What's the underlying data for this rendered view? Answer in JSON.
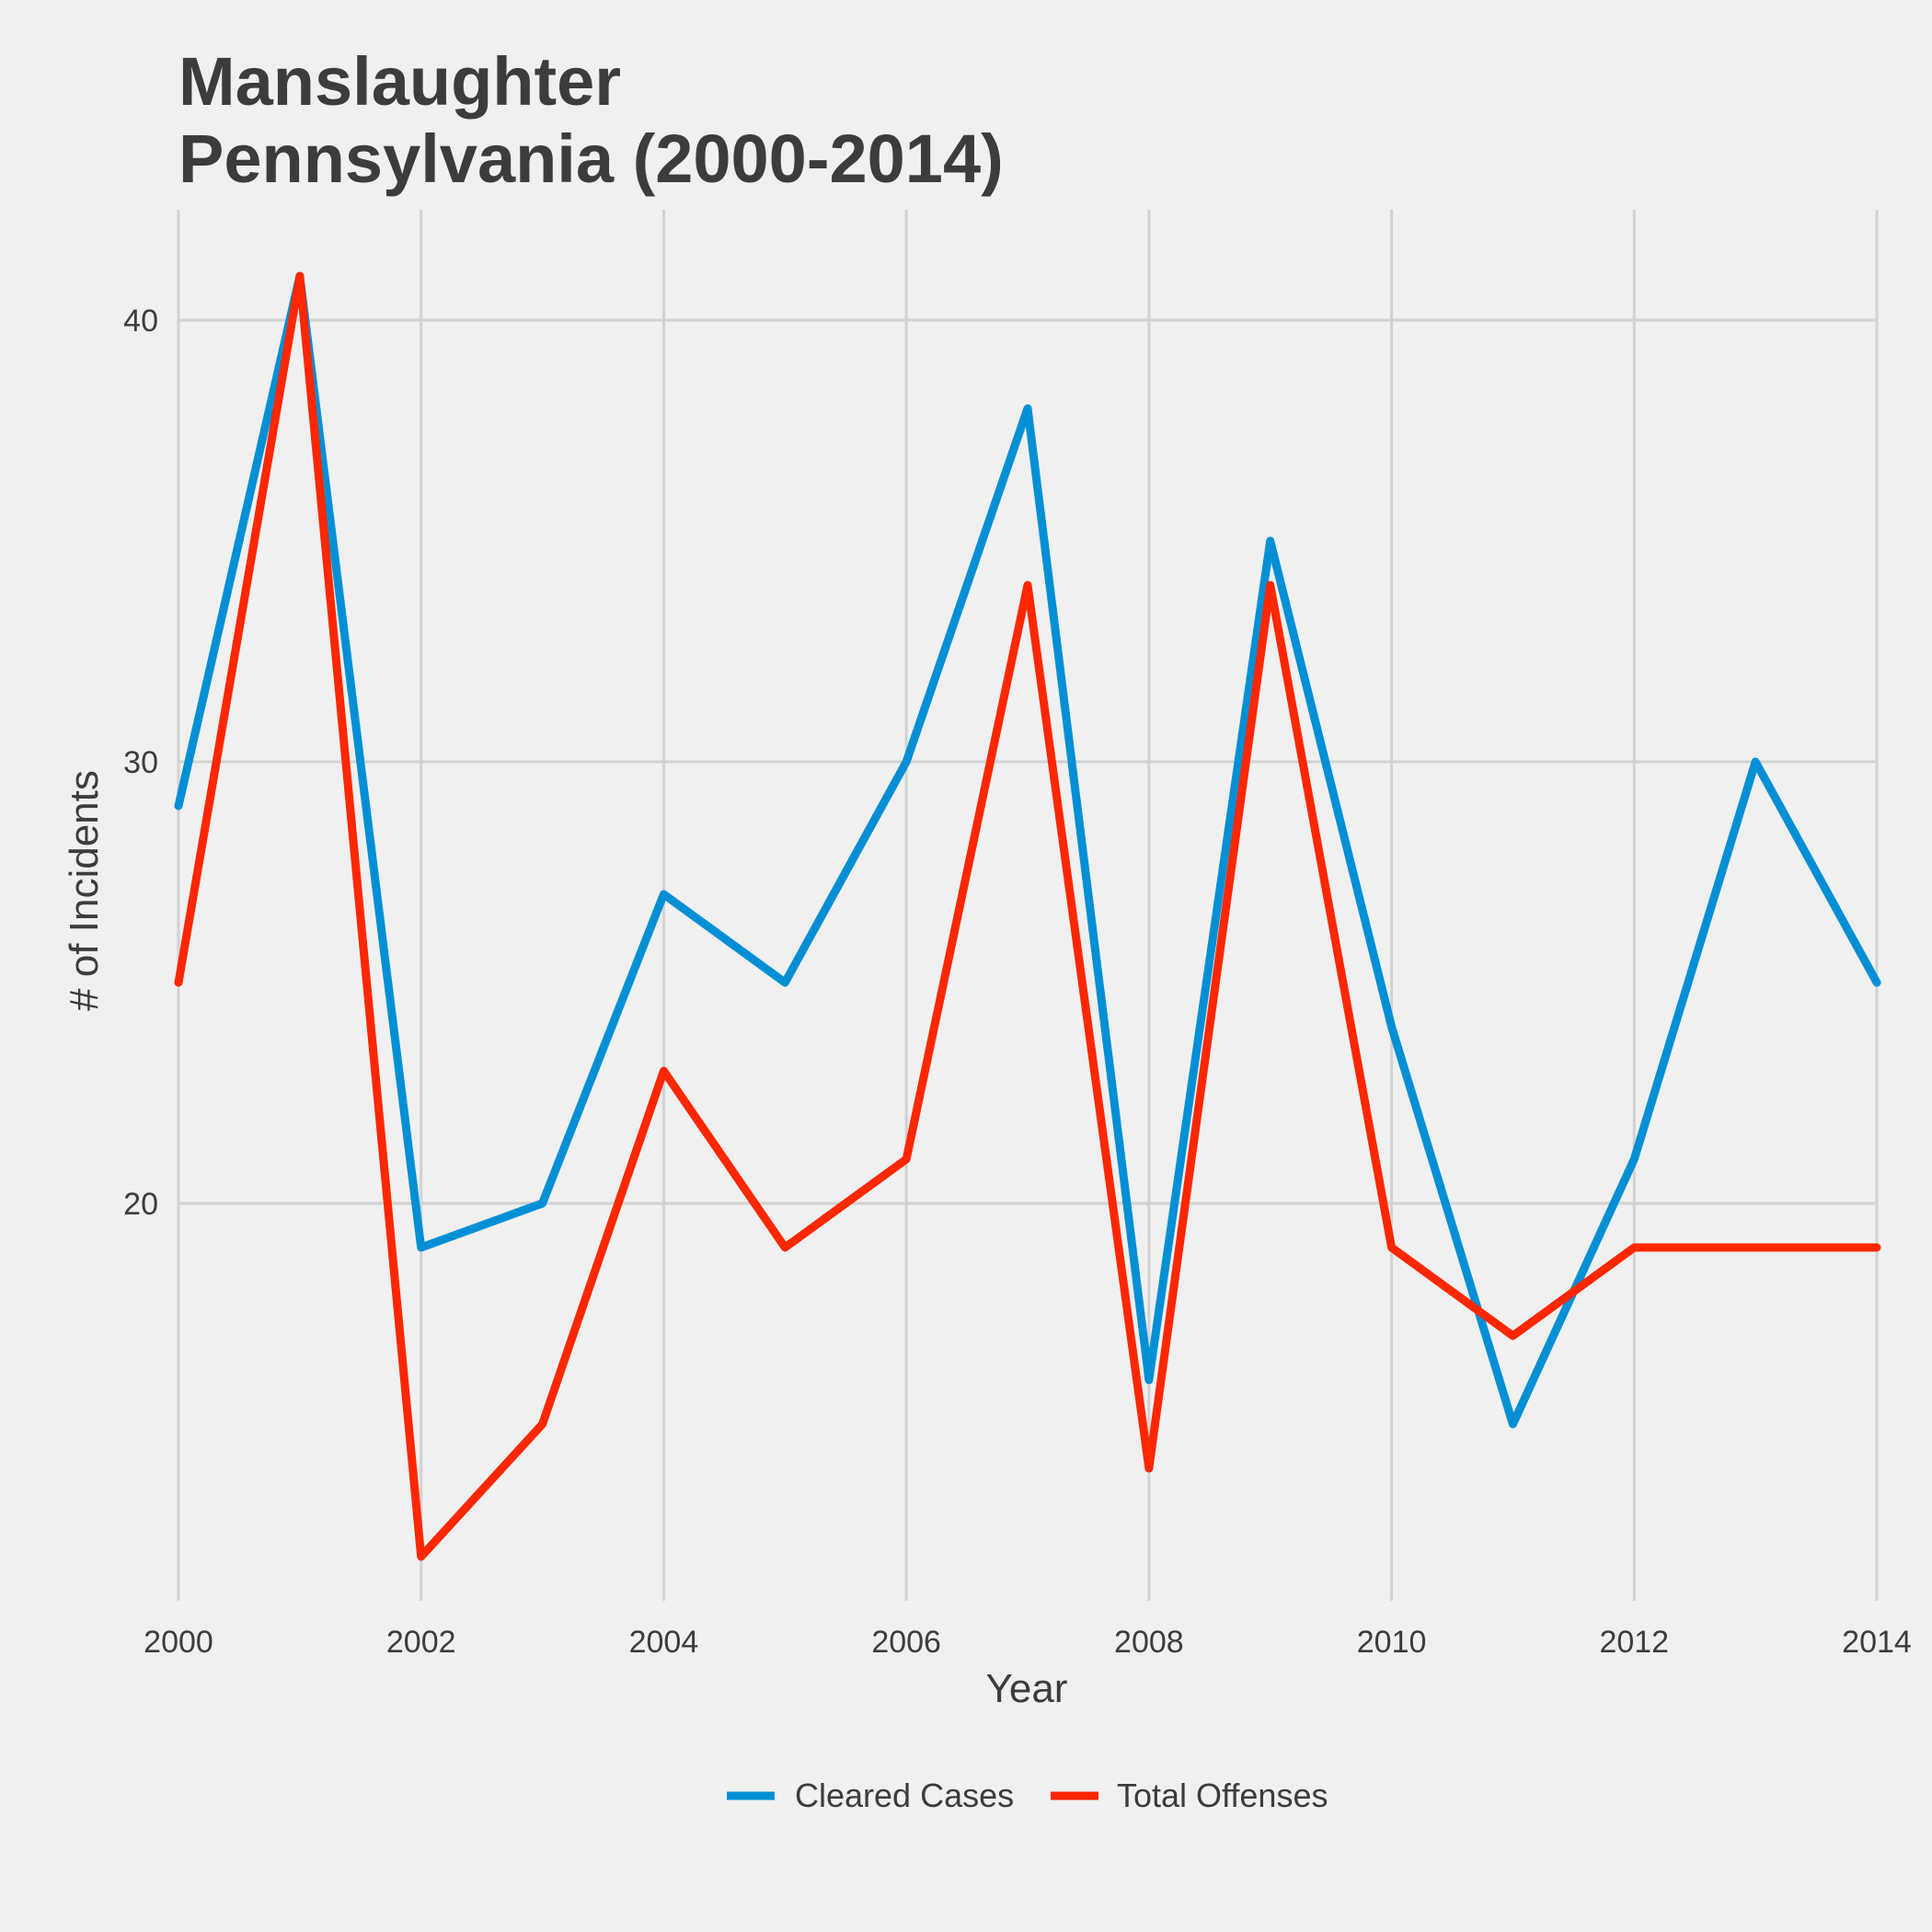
{
  "chart_data": {
    "type": "line",
    "title_lines": [
      "Manslaughter",
      "Pennsylvania (2000-2014)"
    ],
    "xlabel": "Year",
    "ylabel": "# of Incidents",
    "x": [
      2000,
      2001,
      2002,
      2003,
      2004,
      2005,
      2006,
      2007,
      2008,
      2009,
      2010,
      2011,
      2012,
      2013,
      2014
    ],
    "xlim": [
      2000,
      2014
    ],
    "ylim": [
      11,
      42.5
    ],
    "xticks": [
      2000,
      2002,
      2004,
      2006,
      2008,
      2010,
      2012,
      2014
    ],
    "yticks": [
      20,
      30,
      40
    ],
    "series": [
      {
        "name": "Cleared Cases",
        "color": "#008fd5",
        "values": [
          29,
          41,
          19,
          20,
          27,
          25,
          30,
          38,
          16,
          35,
          24,
          15,
          21,
          30,
          25
        ]
      },
      {
        "name": "Total Offenses",
        "color": "#ff2700",
        "values": [
          25,
          41,
          12,
          15,
          23,
          19,
          21,
          34,
          14,
          34,
          19,
          17,
          19,
          19,
          19
        ]
      }
    ],
    "grid": true,
    "legend_position": "bottom"
  }
}
